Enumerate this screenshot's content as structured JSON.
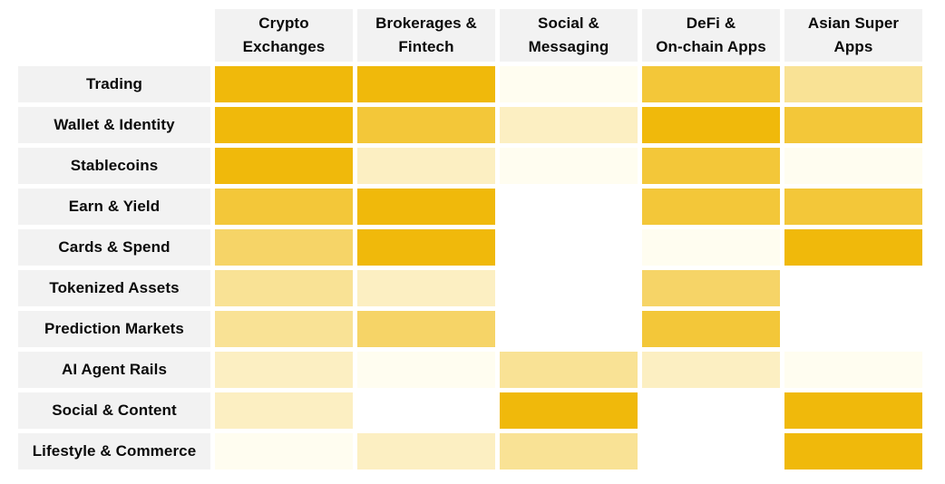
{
  "page": {
    "background": "#FFFFFF"
  },
  "chart_data": {
    "type": "heatmap",
    "title": "",
    "columns": [
      "Crypto Exchanges",
      "Brokerages & Fintech",
      "Social & Messaging",
      "DeFi & On-chain Apps",
      "Asian Super Apps"
    ],
    "columns_display": [
      "Crypto\nExchanges",
      "Brokerages &\nFintech",
      "Social &\nMessaging",
      "DeFi &\nOn-chain Apps",
      "Asian Super\nApps"
    ],
    "rows": [
      "Trading",
      "Wallet & Identity",
      "Stablecoins",
      "Earn & Yield",
      "Cards & Spend",
      "Tokenized Assets",
      "Prediction Markets",
      "AI Agent Rails",
      "Social & Content",
      "Lifestyle & Commerce"
    ],
    "values": [
      [
        5,
        5,
        0,
        4,
        2
      ],
      [
        5,
        4,
        1,
        5,
        4
      ],
      [
        5,
        1,
        0,
        4,
        0
      ],
      [
        4,
        5,
        null,
        4,
        4
      ],
      [
        3,
        5,
        null,
        0,
        5
      ],
      [
        2,
        1,
        null,
        3,
        null
      ],
      [
        2,
        3,
        null,
        4,
        null
      ],
      [
        1,
        0,
        2,
        1,
        0
      ],
      [
        1,
        null,
        5,
        null,
        5
      ],
      [
        0,
        1,
        2,
        null,
        5
      ]
    ],
    "value_range": [
      0,
      5
    ],
    "value_colors": [
      "#FFFDF0",
      "#FCEFC2",
      "#F9E295",
      "#F6D467",
      "#F3C739",
      "#F0B90B"
    ],
    "empty_color": "#FFFFFF",
    "label_bg": "#F2F2F2",
    "text_color": "#0A0A0A",
    "grid": "off",
    "legend": "none"
  }
}
